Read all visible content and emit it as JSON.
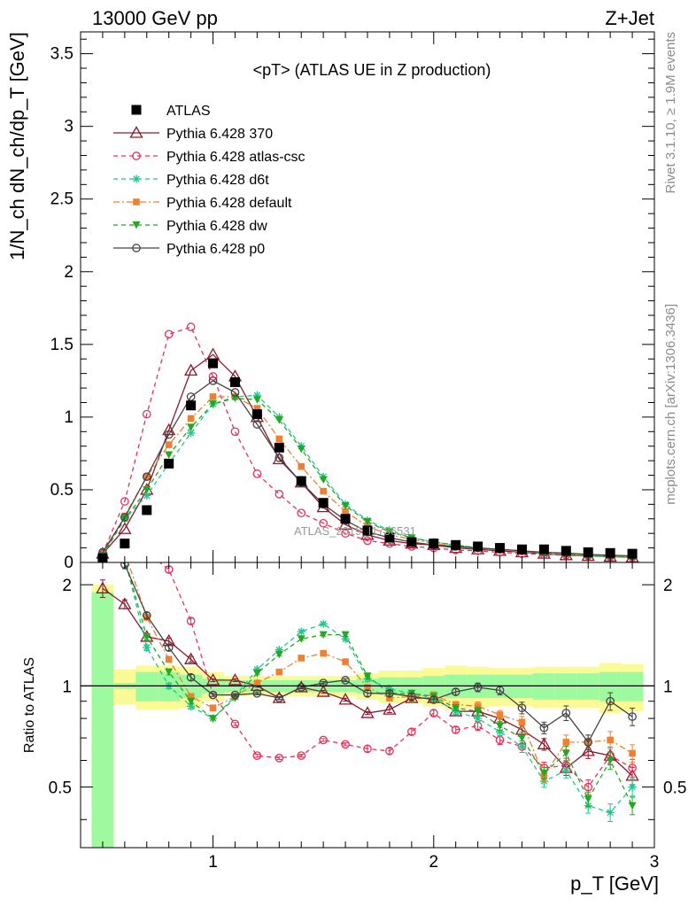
{
  "header": {
    "left": "13000 GeV pp",
    "right": "Z+Jet"
  },
  "side": {
    "rivet": "Rivet 3.1.10, ≥ 1.9M events",
    "mcplots": "mcplots.cern.ch [arXiv:1306.3436]"
  },
  "watermark": "ATLAS_2019_I1736531",
  "chart_data": {
    "type": "scatter",
    "title": "<pT> (ATLAS UE in Z production)",
    "xlabel": "p_T [GeV]",
    "ylabel": "1/N_ch dN_ch/dp_T [GeV]",
    "ratio_ylabel": "Ratio to ATLAS",
    "xlim": [
      0.4,
      3.0
    ],
    "ylim": [
      0,
      3.65
    ],
    "ratio_ylim": [
      0.33,
      2.33
    ],
    "x_ticks": [
      1,
      2,
      3
    ],
    "y_ticks": [
      0,
      0.5,
      1,
      1.5,
      2,
      2.5,
      3,
      3.5
    ],
    "ratio_ticks": [
      0.5,
      1,
      2
    ],
    "x": [
      0.5,
      0.6,
      0.7,
      0.8,
      0.9,
      1.0,
      1.1,
      1.2,
      1.3,
      1.4,
      1.5,
      1.6,
      1.7,
      1.8,
      1.9,
      2.0,
      2.1,
      2.2,
      2.3,
      2.4,
      2.5,
      2.6,
      2.7,
      2.8,
      2.9
    ],
    "data": {
      "name": "ATLAS",
      "values": [
        0.03,
        0.13,
        0.36,
        0.68,
        1.08,
        1.37,
        1.24,
        1.02,
        0.79,
        0.56,
        0.41,
        0.3,
        0.22,
        0.17,
        0.14,
        0.13,
        0.12,
        0.11,
        0.1,
        0.09,
        0.09,
        0.08,
        0.07,
        0.065,
        0.06
      ]
    },
    "series": [
      {
        "name": "Pythia 6.428 370",
        "color": "#8b1a2b",
        "dash": "",
        "marker": "triangle-open",
        "values": [
          0.06,
          0.23,
          0.5,
          0.91,
          1.32,
          1.43,
          1.28,
          1.0,
          0.71,
          0.55,
          0.38,
          0.26,
          0.19,
          0.15,
          0.13,
          0.12,
          0.1,
          0.09,
          0.08,
          0.07,
          0.06,
          0.05,
          0.045,
          0.04,
          0.035
        ],
        "ratio": [
          1.95,
          1.75,
          1.4,
          1.36,
          1.2,
          1.04,
          1.04,
          1.0,
          0.92,
          0.99,
          0.96,
          0.91,
          0.83,
          0.85,
          0.92,
          0.92,
          0.84,
          0.84,
          0.8,
          0.74,
          0.67,
          0.57,
          0.64,
          0.62,
          0.54
        ],
        "ratio_err": [
          0.06,
          0.03,
          0.02,
          0.02,
          0.02,
          0.01,
          0.01,
          0.01,
          0.01,
          0.01,
          0.01,
          0.01,
          0.01,
          0.02,
          0.02,
          0.02,
          0.02,
          0.03,
          0.03,
          0.04,
          0.04,
          0.05,
          0.05,
          0.06,
          0.06
        ]
      },
      {
        "name": "Pythia 6.428 atlas-csc",
        "color": "#e8325a",
        "dash": "5,4",
        "marker": "circle-open",
        "values": [
          0.06,
          0.42,
          1.02,
          1.57,
          1.62,
          1.28,
          0.9,
          0.61,
          0.47,
          0.34,
          0.27,
          0.2,
          0.15,
          0.13,
          0.11,
          0.1,
          0.085,
          0.08,
          0.07,
          0.06,
          0.055,
          0.05,
          0.045,
          0.04,
          0.035
        ],
        "ratio": [
          2.6,
          3.0,
          2.5,
          2.22,
          1.56,
          0.94,
          0.77,
          0.62,
          0.61,
          0.62,
          0.69,
          0.67,
          0.65,
          0.64,
          0.73,
          0.83,
          0.74,
          0.76,
          0.69,
          0.66,
          0.57,
          0.58,
          0.5,
          0.62,
          0.57
        ],
        "ratio_err": [
          0.06,
          0.03,
          0.02,
          0.02,
          0.02,
          0.01,
          0.01,
          0.01,
          0.01,
          0.01,
          0.01,
          0.01,
          0.02,
          0.02,
          0.02,
          0.02,
          0.02,
          0.03,
          0.03,
          0.04,
          0.04,
          0.05,
          0.05,
          0.06,
          0.06
        ]
      },
      {
        "name": "Pythia 6.428 d6t",
        "color": "#1ec88c",
        "dash": "5,4",
        "marker": "star",
        "values": [
          0.05,
          0.3,
          0.46,
          0.68,
          0.89,
          1.09,
          1.14,
          1.15,
          1.0,
          0.8,
          0.59,
          0.4,
          0.29,
          0.22,
          0.17,
          0.14,
          0.12,
          0.1,
          0.09,
          0.08,
          0.06,
          0.055,
          0.045,
          0.04,
          0.035
        ],
        "ratio": [
          2.6,
          2.4,
          1.3,
          1.0,
          0.87,
          0.8,
          0.93,
          1.12,
          1.28,
          1.45,
          1.53,
          1.38,
          1.05,
          0.98,
          0.95,
          0.92,
          0.84,
          0.8,
          0.73,
          0.66,
          0.52,
          0.56,
          0.44,
          0.42,
          0.5
        ],
        "ratio_err": [
          0.06,
          0.03,
          0.02,
          0.02,
          0.02,
          0.01,
          0.01,
          0.01,
          0.01,
          0.01,
          0.01,
          0.01,
          0.02,
          0.02,
          0.02,
          0.02,
          0.02,
          0.03,
          0.03,
          0.04,
          0.04,
          0.05,
          0.05,
          0.06,
          0.06
        ]
      },
      {
        "name": "Pythia 6.428 default",
        "color": "#f08030",
        "dash": "7,3,2,3",
        "marker": "square",
        "values": [
          0.05,
          0.32,
          0.59,
          0.81,
          0.99,
          1.14,
          1.14,
          1.06,
          0.85,
          0.66,
          0.49,
          0.35,
          0.25,
          0.19,
          0.16,
          0.13,
          0.11,
          0.1,
          0.09,
          0.08,
          0.065,
          0.055,
          0.05,
          0.045,
          0.04
        ],
        "ratio": [
          2.6,
          2.5,
          1.6,
          1.2,
          0.93,
          0.86,
          0.93,
          1.02,
          1.1,
          1.21,
          1.25,
          1.18,
          0.99,
          0.92,
          0.93,
          0.94,
          0.88,
          0.87,
          0.82,
          0.78,
          0.54,
          0.68,
          0.68,
          0.69,
          0.63
        ],
        "ratio_err": [
          0.06,
          0.03,
          0.02,
          0.02,
          0.02,
          0.01,
          0.01,
          0.01,
          0.01,
          0.01,
          0.01,
          0.01,
          0.02,
          0.02,
          0.02,
          0.02,
          0.02,
          0.03,
          0.03,
          0.04,
          0.04,
          0.05,
          0.05,
          0.06,
          0.06
        ]
      },
      {
        "name": "Pythia 6.428 dw",
        "color": "#22a822",
        "dash": "5,4",
        "marker": "triangle-down",
        "values": [
          0.05,
          0.3,
          0.5,
          0.74,
          0.93,
          1.09,
          1.13,
          1.12,
          0.98,
          0.78,
          0.57,
          0.39,
          0.28,
          0.21,
          0.17,
          0.14,
          0.12,
          0.1,
          0.09,
          0.08,
          0.065,
          0.055,
          0.045,
          0.04,
          0.035
        ],
        "ratio": [
          2.6,
          2.4,
          1.4,
          1.1,
          0.9,
          0.8,
          0.92,
          1.09,
          1.24,
          1.38,
          1.42,
          1.42,
          1.07,
          0.95,
          0.95,
          0.93,
          0.86,
          0.84,
          0.76,
          0.7,
          0.55,
          0.63,
          0.46,
          0.6,
          0.44
        ],
        "ratio_err": [
          0.06,
          0.03,
          0.02,
          0.02,
          0.02,
          0.01,
          0.01,
          0.01,
          0.01,
          0.01,
          0.01,
          0.01,
          0.02,
          0.02,
          0.02,
          0.02,
          0.02,
          0.03,
          0.03,
          0.04,
          0.04,
          0.05,
          0.05,
          0.06,
          0.06
        ]
      },
      {
        "name": "Pythia 6.428 p0",
        "color": "#444444",
        "dash": "",
        "marker": "circle-open",
        "values": [
          0.07,
          0.31,
          0.59,
          0.88,
          1.14,
          1.25,
          1.17,
          0.95,
          0.72,
          0.55,
          0.4,
          0.29,
          0.21,
          0.17,
          0.14,
          0.12,
          0.11,
          0.1,
          0.09,
          0.08,
          0.07,
          0.065,
          0.055,
          0.05,
          0.045
        ],
        "ratio": [
          2.6,
          2.3,
          1.62,
          1.3,
          1.06,
          0.94,
          0.94,
          0.95,
          0.92,
          0.99,
          1.02,
          1.04,
          0.95,
          0.95,
          0.93,
          0.91,
          0.96,
          0.99,
          0.97,
          0.86,
          0.75,
          0.83,
          0.68,
          0.9,
          0.81
        ],
        "ratio_err": [
          0.06,
          0.03,
          0.02,
          0.02,
          0.02,
          0.01,
          0.01,
          0.01,
          0.01,
          0.01,
          0.01,
          0.01,
          0.02,
          0.02,
          0.02,
          0.02,
          0.02,
          0.03,
          0.03,
          0.04,
          0.04,
          0.05,
          0.05,
          0.06,
          0.06
        ]
      }
    ],
    "bands": {
      "bin_edges": [
        0.45,
        0.55,
        0.65,
        0.75,
        0.85,
        0.95,
        1.05,
        1.15,
        1.25,
        1.35,
        1.45,
        1.55,
        1.65,
        1.75,
        1.85,
        1.95,
        2.05,
        2.15,
        2.25,
        2.35,
        2.45,
        2.55,
        2.65,
        2.75,
        2.85,
        2.95
      ],
      "stat_half": [
        0.9,
        0.02,
        0.1,
        0.1,
        0.08,
        0.05,
        0.04,
        0.04,
        0.04,
        0.04,
        0.04,
        0.04,
        0.05,
        0.06,
        0.06,
        0.07,
        0.08,
        0.08,
        0.08,
        0.08,
        0.09,
        0.09,
        0.09,
        0.1,
        0.1
      ],
      "total_half": [
        1.0,
        0.12,
        0.15,
        0.15,
        0.14,
        0.1,
        0.07,
        0.07,
        0.07,
        0.07,
        0.07,
        0.07,
        0.09,
        0.11,
        0.11,
        0.13,
        0.15,
        0.14,
        0.13,
        0.13,
        0.14,
        0.14,
        0.14,
        0.17,
        0.16
      ],
      "stat_color": "#9efa9e",
      "total_color": "#fafa96"
    }
  }
}
